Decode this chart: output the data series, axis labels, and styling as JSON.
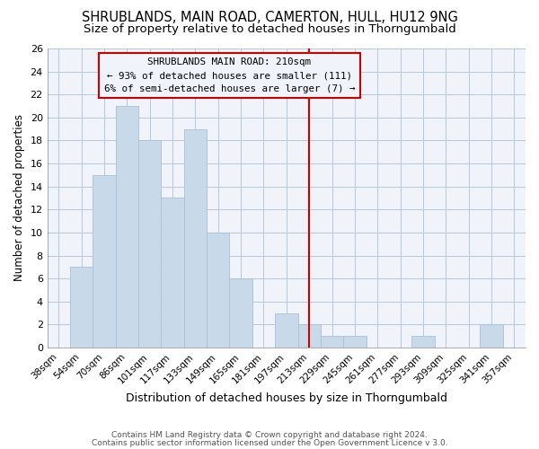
{
  "title": "SHRUBLANDS, MAIN ROAD, CAMERTON, HULL, HU12 9NG",
  "subtitle": "Size of property relative to detached houses in Thorngumbald",
  "xlabel": "Distribution of detached houses by size in Thorngumbald",
  "ylabel": "Number of detached properties",
  "categories": [
    "38sqm",
    "54sqm",
    "70sqm",
    "86sqm",
    "101sqm",
    "117sqm",
    "133sqm",
    "149sqm",
    "165sqm",
    "181sqm",
    "197sqm",
    "213sqm",
    "229sqm",
    "245sqm",
    "261sqm",
    "277sqm",
    "293sqm",
    "309sqm",
    "325sqm",
    "341sqm",
    "357sqm"
  ],
  "values": [
    0,
    7,
    15,
    21,
    18,
    13,
    19,
    10,
    6,
    0,
    3,
    2,
    1,
    1,
    0,
    0,
    1,
    0,
    0,
    2,
    0
  ],
  "bar_color": "#c8daea",
  "bar_edge_color": "#a8c0d8",
  "vline_x_index": 11,
  "vline_color": "#cc0000",
  "annotation_text": "SHRUBLANDS MAIN ROAD: 210sqm\n← 93% of detached houses are smaller (111)\n6% of semi-detached houses are larger (7) →",
  "annotation_box_color": "#cc0000",
  "ylim": [
    0,
    26
  ],
  "yticks": [
    0,
    2,
    4,
    6,
    8,
    10,
    12,
    14,
    16,
    18,
    20,
    22,
    24,
    26
  ],
  "bg_color": "#ffffff",
  "plot_bg_color": "#f0f4fa",
  "grid_color": "#b8c8dc",
  "footer_line1": "Contains HM Land Registry data © Crown copyright and database right 2024.",
  "footer_line2": "Contains public sector information licensed under the Open Government Licence v 3.0.",
  "title_fontsize": 10.5,
  "subtitle_fontsize": 9.5,
  "xlabel_fontsize": 9,
  "ylabel_fontsize": 8.5
}
